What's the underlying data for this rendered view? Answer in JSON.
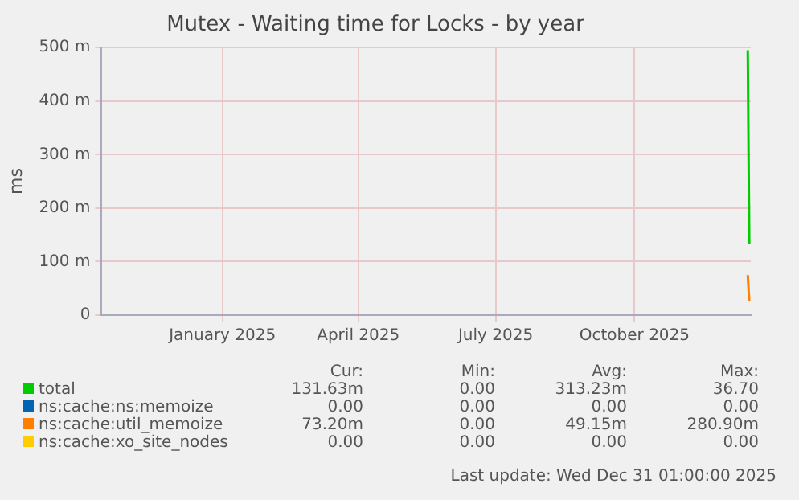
{
  "chart_data": {
    "type": "line",
    "title": "Mutex - Waiting time for Locks - by year",
    "ylabel": "ms",
    "xlim": [
      "2024-10-13",
      "2025-12-17"
    ],
    "xticks": [
      {
        "value": "2025-01-01",
        "label": "January 2025"
      },
      {
        "value": "2025-04-01",
        "label": "April 2025"
      },
      {
        "value": "2025-07-01",
        "label": "July 2025"
      },
      {
        "value": "2025-10-01",
        "label": "October 2025"
      }
    ],
    "ylim": [
      0,
      500
    ],
    "yticks": [
      0,
      {
        "value": 100,
        "label": "100 m"
      },
      {
        "value": 200,
        "label": "200 m"
      },
      {
        "value": 300,
        "label": "300 m"
      },
      {
        "value": 400,
        "label": "400 m"
      },
      {
        "value": 500,
        "label": "500 m"
      }
    ],
    "x": [
      "2025-12-15",
      "2025-12-16"
    ],
    "series": [
      {
        "name": "total",
        "color": "#00cc00",
        "values": [
          495,
          133
        ]
      },
      {
        "name": "ns:cache:ns:memoize",
        "color": "#0066b3",
        "values": [
          null,
          null
        ]
      },
      {
        "name": "ns:cache:util_memoize",
        "color": "#ff8000",
        "values": [
          75,
          26
        ]
      },
      {
        "name": "ns:cache:xo_site_nodes",
        "color": "#ffcc00",
        "values": [
          null,
          null
        ]
      }
    ],
    "annotations": [
      "Cur:",
      "Min:",
      "Avg:",
      "Max:",
      "131.63m",
      "0.00",
      "313.23m",
      "36.70",
      "0.00",
      "0.00",
      "0.00",
      "0.00",
      "73.20m",
      "0.00",
      "49.15m",
      "280.90m",
      "0.00",
      "0.00",
      "0.00",
      "0.00",
      "Last update: Wed Dec 31 01:00:00 2025"
    ],
    "grid": true,
    "legend": "bottom",
    "marker": "none",
    "line_style": "solid"
  }
}
